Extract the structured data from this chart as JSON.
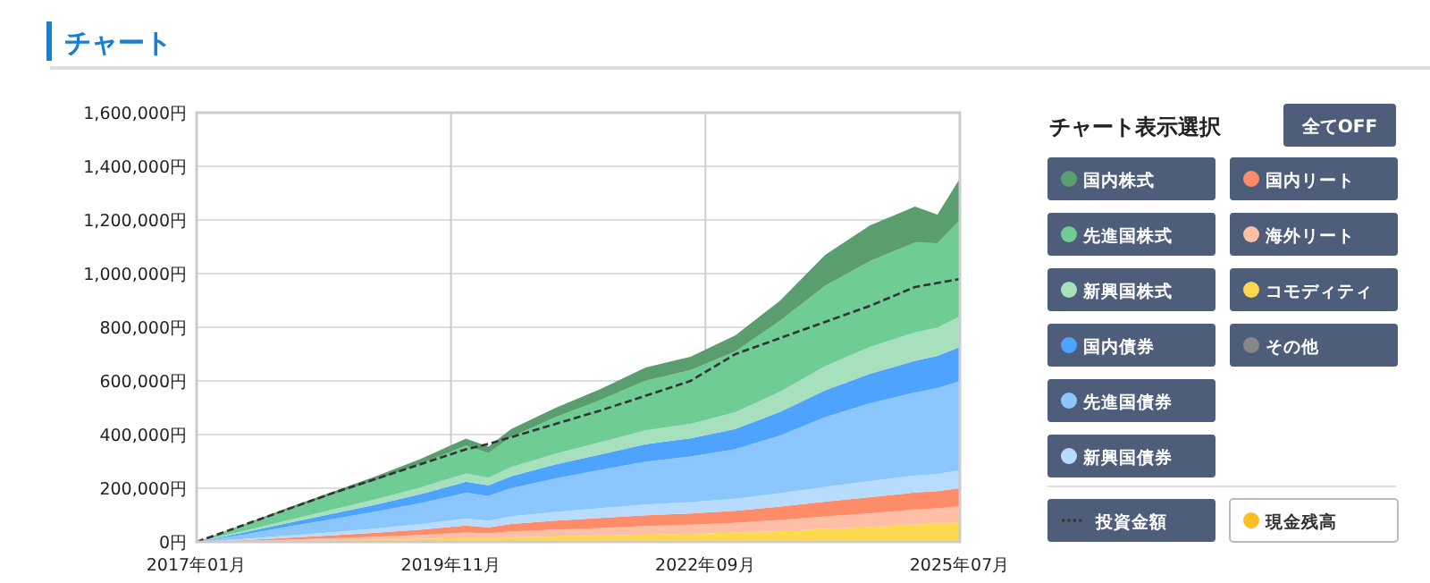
{
  "chart_data": {
    "type": "area",
    "title": "チャート",
    "stacked": true,
    "grid": true,
    "legend": "right",
    "x": [
      "2017-01",
      "2017-07",
      "2018-01",
      "2018-07",
      "2019-01",
      "2019-07",
      "2020-01",
      "2020-04",
      "2020-07",
      "2021-01",
      "2021-07",
      "2022-01",
      "2022-07",
      "2023-01",
      "2023-07",
      "2024-01",
      "2024-07",
      "2025-01",
      "2025-04",
      "2025-07"
    ],
    "xlim": [
      "2017-01",
      "2025-07"
    ],
    "xticks": [
      {
        "value": "2017-01",
        "label": "2017年01月"
      },
      {
        "value": "2019-11",
        "label": "2019年11月"
      },
      {
        "value": "2022-09",
        "label": "2022年09月"
      },
      {
        "value": "2025-07",
        "label": "2025年07月"
      }
    ],
    "ylim": [
      0,
      1600000
    ],
    "yticks": [
      {
        "value": 0,
        "label": "0円"
      },
      {
        "value": 200000,
        "label": "200,000円"
      },
      {
        "value": 400000,
        "label": "400,000円"
      },
      {
        "value": 600000,
        "label": "600,000円"
      },
      {
        "value": 800000,
        "label": "800,000円"
      },
      {
        "value": 1000000,
        "label": "1,000,000円"
      },
      {
        "value": 1200000,
        "label": "1,200,000円"
      },
      {
        "value": 1400000,
        "label": "1,400,000円"
      },
      {
        "value": 1600000,
        "label": "1,600,000円"
      }
    ],
    "series": [
      {
        "name": "その他",
        "color": "#888888",
        "values": [
          null,
          null,
          null,
          null,
          null,
          null,
          null,
          null,
          null,
          null,
          null,
          null,
          null,
          null,
          null,
          null,
          null,
          null,
          null,
          null
        ]
      },
      {
        "name": "コモディティ",
        "color": "#ffd84d",
        "values": [
          0,
          1000,
          3000,
          5000,
          8000,
          11000,
          15000,
          14000,
          17000,
          20000,
          23000,
          27000,
          30000,
          35000,
          40000,
          48000,
          55000,
          65000,
          68000,
          73000
        ]
      },
      {
        "name": "海外リート",
        "color": "#ffbfa6",
        "values": [
          0,
          2000,
          5000,
          8000,
          11000,
          15000,
          20000,
          18000,
          22000,
          26000,
          29000,
          32000,
          34000,
          36000,
          42000,
          47000,
          52000,
          56000,
          57000,
          60000
        ]
      },
      {
        "name": "国内リート",
        "color": "#ff8c69",
        "values": [
          0,
          3000,
          7000,
          11000,
          15000,
          20000,
          26000,
          22000,
          28000,
          33000,
          37000,
          40000,
          42000,
          45000,
          50000,
          55000,
          60000,
          63000,
          64000,
          67000
        ]
      },
      {
        "name": "新興国債券",
        "color": "#b8dcff",
        "values": [
          0,
          4000,
          8000,
          12000,
          16000,
          21000,
          26000,
          25000,
          28000,
          33000,
          37000,
          40000,
          42000,
          45000,
          50000,
          55000,
          60000,
          63000,
          64000,
          67000
        ]
      },
      {
        "name": "先進国債券",
        "color": "#8cc6ff",
        "values": [
          0,
          16000,
          33000,
          48000,
          63000,
          78000,
          96000,
          92000,
          105000,
          125000,
          142000,
          160000,
          170000,
          185000,
          215000,
          260000,
          290000,
          310000,
          320000,
          333000
        ]
      },
      {
        "name": "国内債券",
        "color": "#4da3ff",
        "values": [
          0,
          7000,
          13000,
          20000,
          26000,
          33000,
          41000,
          40000,
          44000,
          52000,
          58000,
          65000,
          68000,
          75000,
          88000,
          100000,
          110000,
          118000,
          120000,
          127000
        ]
      },
      {
        "name": "新興国株式",
        "color": "#a6e0bd",
        "values": [
          0,
          5000,
          10000,
          15000,
          20000,
          25000,
          31000,
          28000,
          34000,
          40000,
          46000,
          52000,
          54000,
          62000,
          75000,
          90000,
          100000,
          106000,
          105000,
          113000
        ]
      },
      {
        "name": "先進国株式",
        "color": "#6fcc94",
        "values": [
          0,
          20000,
          38000,
          55000,
          70000,
          88000,
          104000,
          92000,
          113000,
          136000,
          157000,
          185000,
          200000,
          227000,
          265000,
          300000,
          320000,
          335000,
          315000,
          360000
        ]
      },
      {
        "name": "国内株式",
        "color": "#5a9e6f",
        "values": [
          0,
          4000,
          8000,
          11000,
          16000,
          19000,
          26000,
          24000,
          29000,
          35000,
          41000,
          49000,
          50000,
          60000,
          75000,
          115000,
          133000,
          134000,
          107000,
          155000
        ]
      },
      {
        "name": "投資金額",
        "type": "line",
        "line_style": "dashed",
        "color": "#333333",
        "values": [
          0,
          60000,
          120000,
          180000,
          235000,
          290000,
          345000,
          365000,
          390000,
          440000,
          490000,
          545000,
          600000,
          700000,
          760000,
          820000,
          880000,
          950000,
          965000,
          980000
        ]
      },
      {
        "name": "現金残高",
        "type": "line",
        "color": "#fbbf24",
        "values": [
          null,
          null,
          null,
          null,
          null,
          null,
          null,
          null,
          null,
          null,
          null,
          null,
          null,
          null,
          null,
          null,
          null,
          null,
          null,
          null
        ]
      }
    ],
    "annotations": [
      "チャート表示選択",
      "全てOFF"
    ]
  }
}
